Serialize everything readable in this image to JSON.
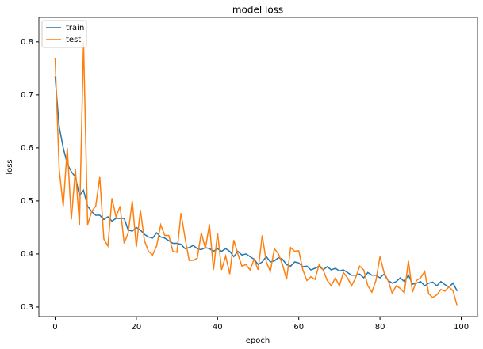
{
  "chart_data": {
    "type": "line",
    "title": "model loss",
    "x_label": "epoch",
    "y_label": "loss",
    "x": [
      0,
      1,
      2,
      3,
      4,
      5,
      6,
      7,
      8,
      9,
      10,
      11,
      12,
      13,
      14,
      15,
      16,
      17,
      18,
      19,
      20,
      21,
      22,
      23,
      24,
      25,
      26,
      27,
      28,
      29,
      30,
      31,
      32,
      33,
      34,
      35,
      36,
      37,
      38,
      39,
      40,
      41,
      42,
      43,
      44,
      45,
      46,
      47,
      48,
      49,
      50,
      51,
      52,
      53,
      54,
      55,
      56,
      57,
      58,
      59,
      60,
      61,
      62,
      63,
      64,
      65,
      66,
      67,
      68,
      69,
      70,
      71,
      72,
      73,
      74,
      75,
      76,
      77,
      78,
      79,
      80,
      81,
      82,
      83,
      84,
      85,
      86,
      87,
      88,
      89,
      90,
      91,
      92,
      93,
      94,
      95,
      96,
      97,
      98,
      99
    ],
    "series": [
      {
        "name": "train",
        "color": "#1f77b4",
        "values": [
          0.735,
          0.64,
          0.6,
          0.57,
          0.555,
          0.545,
          0.51,
          0.52,
          0.49,
          0.48,
          0.473,
          0.473,
          0.465,
          0.47,
          0.462,
          0.467,
          0.467,
          0.467,
          0.445,
          0.443,
          0.45,
          0.445,
          0.437,
          0.432,
          0.43,
          0.44,
          0.432,
          0.43,
          0.425,
          0.42,
          0.42,
          0.418,
          0.41,
          0.412,
          0.416,
          0.41,
          0.408,
          0.412,
          0.41,
          0.405,
          0.41,
          0.405,
          0.41,
          0.405,
          0.395,
          0.405,
          0.398,
          0.4,
          0.395,
          0.39,
          0.38,
          0.385,
          0.395,
          0.385,
          0.387,
          0.393,
          0.39,
          0.38,
          0.377,
          0.385,
          0.383,
          0.376,
          0.377,
          0.37,
          0.373,
          0.377,
          0.37,
          0.376,
          0.37,
          0.373,
          0.368,
          0.37,
          0.365,
          0.36,
          0.36,
          0.362,
          0.355,
          0.365,
          0.36,
          0.36,
          0.355,
          0.362,
          0.35,
          0.345,
          0.348,
          0.355,
          0.348,
          0.36,
          0.343,
          0.345,
          0.348,
          0.34,
          0.345,
          0.347,
          0.34,
          0.348,
          0.342,
          0.338,
          0.345,
          0.33
        ]
      },
      {
        "name": "test",
        "color": "#ff7f0e",
        "values": [
          0.77,
          0.56,
          0.49,
          0.6,
          0.465,
          0.56,
          0.455,
          0.8,
          0.455,
          0.48,
          0.49,
          0.545,
          0.428,
          0.415,
          0.505,
          0.47,
          0.49,
          0.42,
          0.44,
          0.5,
          0.413,
          0.483,
          0.425,
          0.405,
          0.398,
          0.415,
          0.455,
          0.435,
          0.435,
          0.405,
          0.403,
          0.477,
          0.43,
          0.388,
          0.388,
          0.392,
          0.44,
          0.41,
          0.456,
          0.37,
          0.44,
          0.37,
          0.396,
          0.362,
          0.426,
          0.4,
          0.377,
          0.38,
          0.37,
          0.39,
          0.37,
          0.435,
          0.385,
          0.367,
          0.41,
          0.4,
          0.38,
          0.352,
          0.412,
          0.405,
          0.406,
          0.37,
          0.35,
          0.357,
          0.352,
          0.38,
          0.37,
          0.35,
          0.34,
          0.355,
          0.34,
          0.365,
          0.355,
          0.34,
          0.355,
          0.377,
          0.37,
          0.34,
          0.328,
          0.35,
          0.395,
          0.365,
          0.35,
          0.326,
          0.34,
          0.335,
          0.327,
          0.387,
          0.328,
          0.35,
          0.355,
          0.367,
          0.325,
          0.318,
          0.323,
          0.333,
          0.33,
          0.338,
          0.33,
          0.302
        ]
      }
    ],
    "xlim": [
      -4,
      104
    ],
    "ylim": [
      0.282,
      0.846
    ],
    "xticks": [
      0,
      20,
      40,
      60,
      80,
      100
    ],
    "yticks": [
      0.3,
      0.4,
      0.5,
      0.6,
      0.7,
      0.8
    ],
    "legend": "upper left"
  }
}
